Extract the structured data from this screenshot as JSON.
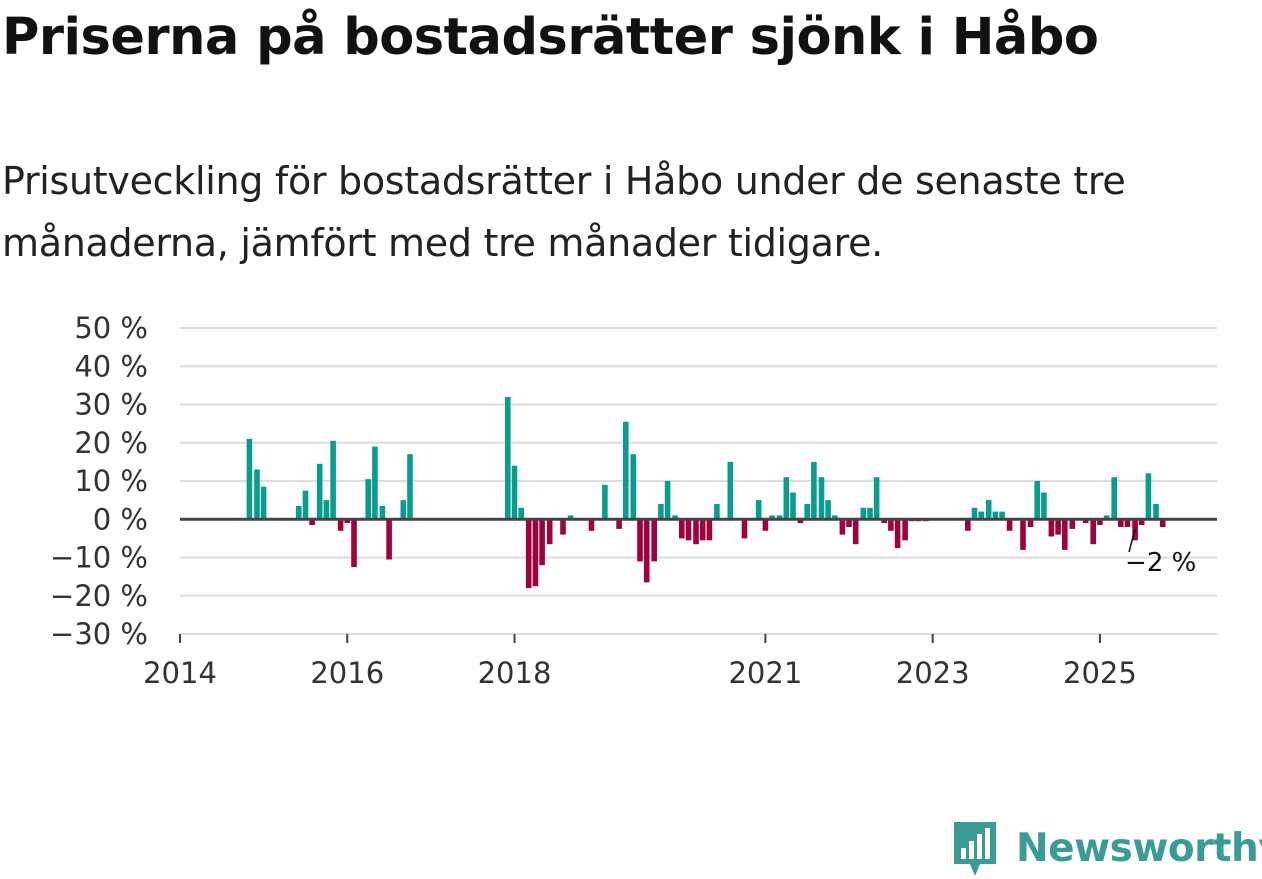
{
  "title": "Priserna på bostadsrätter sjönk i Håbo",
  "subtitle": "Prisutveckling för bostadsrätter i Håbo under de senaste tre månaderna, jämfört med tre månader tidigare.",
  "brand": {
    "name": "Newsworthy",
    "icon": "newsworthy-logo-icon",
    "color": "#3a9c95"
  },
  "colors": {
    "positive": "#0a9d8f",
    "negative": "#a0003c",
    "grid": "#dddddd",
    "zero": "#444444"
  },
  "chart_data": {
    "type": "bar",
    "title": "Priserna på bostadsrätter sjönk i Håbo",
    "xlabel": "",
    "ylabel": "",
    "ylim": [
      -30,
      50
    ],
    "xlim": [
      2014.0,
      2026.4
    ],
    "yticks": [
      50,
      40,
      30,
      20,
      10,
      0,
      -10,
      -20,
      -30
    ],
    "ytick_labels": [
      "50 %",
      "40 %",
      "30 %",
      "20 %",
      "10 %",
      "0 %",
      "−10 %",
      "−20 %",
      "−30 %"
    ],
    "xticks": [
      2014,
      2016,
      2018,
      2021,
      2023,
      2025
    ],
    "xtick_labels": [
      "2014",
      "2016",
      "2018",
      "2021",
      "2023",
      "2025"
    ],
    "annotation": {
      "text": "−2 %",
      "x": 2025.42,
      "y": -2
    },
    "series": [
      {
        "name": "Prisutveckling",
        "x": [
          2014.83,
          2014.92,
          2015.0,
          2015.42,
          2015.5,
          2015.58,
          2015.67,
          2015.75,
          2015.83,
          2015.92,
          2016.0,
          2016.08,
          2016.25,
          2016.33,
          2016.42,
          2016.5,
          2016.67,
          2016.75,
          2017.92,
          2018.0,
          2018.08,
          2018.17,
          2018.25,
          2018.33,
          2018.42,
          2018.58,
          2018.67,
          2018.92,
          2019.08,
          2019.25,
          2019.33,
          2019.42,
          2019.5,
          2019.58,
          2019.67,
          2019.75,
          2019.83,
          2019.92,
          2020.0,
          2020.08,
          2020.17,
          2020.25,
          2020.33,
          2020.42,
          2020.58,
          2020.75,
          2020.92,
          2021.0,
          2021.08,
          2021.17,
          2021.25,
          2021.33,
          2021.42,
          2021.5,
          2021.58,
          2021.67,
          2021.75,
          2021.83,
          2021.92,
          2022.0,
          2022.08,
          2022.17,
          2022.25,
          2022.33,
          2022.42,
          2022.5,
          2022.58,
          2022.67,
          2022.75,
          2022.83,
          2022.92,
          2023.42,
          2023.5,
          2023.58,
          2023.67,
          2023.75,
          2023.83,
          2023.92,
          2024.08,
          2024.17,
          2024.25,
          2024.33,
          2024.42,
          2024.5,
          2024.58,
          2024.67,
          2024.83,
          2024.92,
          2025.0,
          2025.08,
          2025.17,
          2025.25,
          2025.33,
          2025.42,
          2025.5,
          2025.58,
          2025.67,
          2025.75
        ],
        "values": [
          21,
          13,
          8.5,
          3.5,
          7.5,
          -1.5,
          14.5,
          5,
          20.5,
          -3,
          -1,
          -12.5,
          10.5,
          19,
          3.5,
          -10.5,
          5,
          17,
          32,
          14,
          3,
          -18,
          -17.5,
          -12,
          -6.5,
          -4,
          1,
          -3,
          9,
          -2.5,
          25.5,
          17,
          -11,
          -16.5,
          -11,
          4,
          10,
          1,
          -5,
          -5.5,
          -6.5,
          -5.5,
          -5.5,
          4,
          15,
          -5,
          5,
          -3,
          1,
          1,
          11,
          7,
          -1,
          4,
          15,
          11,
          5,
          1,
          -4,
          -2,
          -6.5,
          3,
          3,
          11,
          -1,
          -3,
          -7.5,
          -5.5,
          -0.5,
          -0.5,
          -0.5,
          -3,
          3,
          2,
          5,
          2,
          2,
          -3,
          -8,
          -2,
          10,
          7,
          -4.5,
          -4,
          -8,
          -2.5,
          -1,
          -6.5,
          -1.5,
          1,
          11,
          -2,
          -2,
          -5.5,
          -1.5,
          12,
          4,
          -2
        ]
      }
    ]
  }
}
